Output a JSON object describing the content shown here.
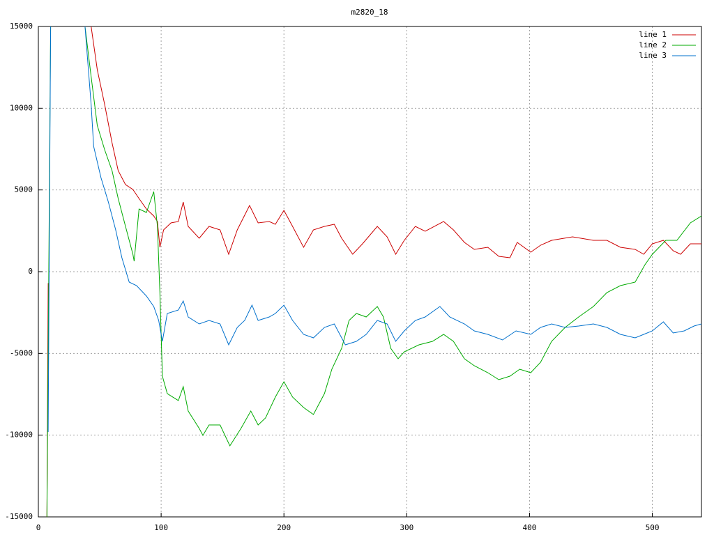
{
  "chart_data": {
    "type": "line",
    "title": "m2820_18",
    "xlim": [
      0,
      540
    ],
    "ylim": [
      -15000,
      15000
    ],
    "xticks": [
      0,
      100,
      200,
      300,
      400,
      500
    ],
    "yticks": [
      -15000,
      -10000,
      -5000,
      0,
      5000,
      10000,
      15000
    ],
    "grid": true,
    "legend": "top-right",
    "series": [
      {
        "name": "line 1",
        "color": "#cc0000",
        "x": [
          7,
          8,
          null,
          43,
          48,
          54,
          60,
          65,
          71,
          77,
          82,
          88,
          94,
          97,
          99,
          102,
          108,
          114,
          118,
          122,
          131,
          139,
          148,
          155,
          162,
          172,
          179,
          188,
          193,
          200,
          207,
          216,
          224,
          233,
          241,
          247,
          256,
          264,
          276,
          284,
          291,
          298,
          307,
          315,
          330,
          338,
          347,
          355,
          366,
          375,
          384,
          390,
          401,
          409,
          418,
          435,
          452,
          463,
          474,
          486,
          493,
          500,
          509,
          517,
          523,
          531,
          540
        ],
        "values": [
          -15000,
          -700,
          null,
          15000,
          12358,
          10227,
          7883,
          6179,
          5327,
          5028,
          4474,
          3835,
          3409,
          3068,
          1491,
          2557,
          2983,
          3068,
          4261,
          2770,
          2045,
          2770,
          2557,
          1065,
          2557,
          4048,
          2983,
          3068,
          2898,
          3750,
          2770,
          1491,
          2557,
          2770,
          2898,
          2045,
          1065,
          1705,
          2770,
          2131,
          1065,
          1917,
          2770,
          2472,
          3068,
          2557,
          1790,
          1364,
          1491,
          937,
          852,
          1790,
          1193,
          1619,
          1917,
          2131,
          1917,
          1917,
          1491,
          1364,
          1065,
          1705,
          1917,
          1278,
          1065,
          1705,
          1705
        ]
      },
      {
        "name": "line 2",
        "color": "#00aa00",
        "x": [
          7,
          10,
          null,
          38,
          43,
          48,
          54,
          60,
          65,
          71,
          77,
          78,
          82,
          88,
          94,
          97,
          99,
          101,
          105,
          114,
          118,
          122,
          131,
          134,
          139,
          148,
          156,
          165,
          173,
          179,
          185,
          193,
          200,
          207,
          216,
          224,
          233,
          239,
          247,
          253,
          259,
          267,
          276,
          281,
          287,
          293,
          298,
          310,
          321,
          330,
          338,
          347,
          355,
          366,
          375,
          384,
          392,
          401,
          409,
          418,
          429,
          440,
          452,
          463,
          474,
          486,
          494,
          500,
          511,
          520,
          531,
          540
        ],
        "values": [
          -15000,
          15000,
          null,
          15000,
          11932,
          8949,
          7457,
          6179,
          4474,
          2770,
          1065,
          639,
          3835,
          3622,
          4900,
          2770,
          -1278,
          -6392,
          -7458,
          -7884,
          -7031,
          -8523,
          -9588,
          -10014,
          -9375,
          -9375,
          -10654,
          -9588,
          -8523,
          -9375,
          -8949,
          -7671,
          -6733,
          -7671,
          -8310,
          -8736,
          -7458,
          -5966,
          -4688,
          -2983,
          -2557,
          -2770,
          -2131,
          -2770,
          -4688,
          -5327,
          -4901,
          -4475,
          -4261,
          -3835,
          -4261,
          -5327,
          -5753,
          -6179,
          -6605,
          -6392,
          -5966,
          -6179,
          -5540,
          -4261,
          -3409,
          -2770,
          -2131,
          -1278,
          -852,
          -639,
          426,
          1065,
          1917,
          1917,
          2983,
          3409
        ]
      },
      {
        "name": "line 3",
        "color": "#0070cc",
        "x": [
          8,
          10,
          null,
          38,
          43,
          45,
          51,
          57,
          63,
          68,
          74,
          80,
          88,
          94,
          98,
          101,
          105,
          114,
          118,
          122,
          131,
          139,
          148,
          155,
          162,
          168,
          174,
          179,
          188,
          193,
          200,
          207,
          216,
          224,
          233,
          241,
          250,
          259,
          267,
          276,
          284,
          291,
          298,
          307,
          315,
          327,
          335,
          347,
          355,
          366,
          378,
          389,
          401,
          409,
          418,
          429,
          440,
          452,
          463,
          474,
          486,
          493,
          500,
          509,
          517,
          526,
          534,
          540
        ],
        "values": [
          -9801,
          15000,
          null,
          15000,
          10227,
          7671,
          5753,
          4261,
          2557,
          852,
          -639,
          -852,
          -1492,
          -2131,
          -2983,
          -4261,
          -2557,
          -2344,
          -1790,
          -2770,
          -3196,
          -2983,
          -3196,
          -4475,
          -3409,
          -2983,
          -2045,
          -2983,
          -2770,
          -2557,
          -2045,
          -2983,
          -3835,
          -4048,
          -3409,
          -3196,
          -4475,
          -4261,
          -3835,
          -2983,
          -3196,
          -4261,
          -3622,
          -2983,
          -2770,
          -2131,
          -2770,
          -3196,
          -3622,
          -3835,
          -4176,
          -3622,
          -3835,
          -3409,
          -3196,
          -3409,
          -3324,
          -3196,
          -3409,
          -3835,
          -4048,
          -3835,
          -3622,
          -3068,
          -3750,
          -3622,
          -3324,
          -3196
        ]
      }
    ]
  }
}
